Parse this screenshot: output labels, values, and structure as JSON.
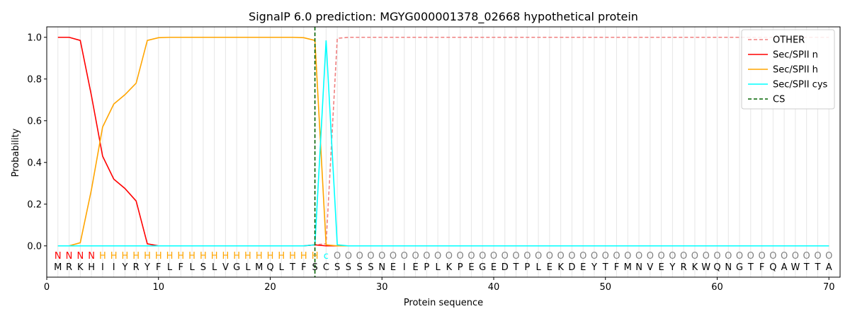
{
  "chart_data": {
    "type": "line",
    "title": "SignalP 6.0 prediction: MGYG000001378_02668 hypothetical protein",
    "xlabel": "Protein sequence",
    "ylabel": "Probability",
    "xlim": [
      0,
      71
    ],
    "ylim": [
      -0.15,
      1.05
    ],
    "xticks": [
      0,
      10,
      20,
      30,
      40,
      50,
      60,
      70
    ],
    "yticks": [
      0.0,
      0.2,
      0.4,
      0.6,
      0.8,
      1.0
    ],
    "xtick_labels": [
      "0",
      "10",
      "20",
      "30",
      "40",
      "50",
      "60",
      "70"
    ],
    "ytick_labels": [
      "0.0",
      "0.2",
      "0.4",
      "0.6",
      "0.8",
      "1.0"
    ],
    "grid": "vertical lines at each residue",
    "legend_position": "top-right",
    "sequence": [
      "M",
      "R",
      "K",
      "H",
      "I",
      "I",
      "Y",
      "R",
      "Y",
      "F",
      "L",
      "F",
      "L",
      "S",
      "L",
      "V",
      "G",
      "L",
      "M",
      "Q",
      "L",
      "T",
      "F",
      "S",
      "C",
      "S",
      "S",
      "S",
      "S",
      "N",
      "E",
      "I",
      "E",
      "P",
      "L",
      "K",
      "P",
      "E",
      "G",
      "E",
      "D",
      "T",
      "P",
      "L",
      "E",
      "K",
      "D",
      "E",
      "Y",
      "T",
      "F",
      "M",
      "N",
      "V",
      "E",
      "Y",
      "R",
      "K",
      "W",
      "Q",
      "N",
      "G",
      "T",
      "F",
      "Q",
      "A",
      "W",
      "T",
      "T",
      "A"
    ],
    "region_labels": [
      "N",
      "N",
      "N",
      "N",
      "H",
      "H",
      "H",
      "H",
      "H",
      "H",
      "H",
      "H",
      "H",
      "H",
      "H",
      "H",
      "H",
      "H",
      "H",
      "H",
      "H",
      "H",
      "H",
      "H",
      "c",
      "O",
      "O",
      "O",
      "O",
      "O",
      "O",
      "O",
      "O",
      "O",
      "O",
      "O",
      "O",
      "O",
      "O",
      "O",
      "O",
      "O",
      "O",
      "O",
      "O",
      "O",
      "O",
      "O",
      "O",
      "O",
      "O",
      "O",
      "O",
      "O",
      "O",
      "O",
      "O",
      "O",
      "O",
      "O",
      "O",
      "O",
      "O",
      "O",
      "O",
      "O",
      "O",
      "O",
      "O",
      "O"
    ],
    "region_colors": {
      "N": "#ff0000",
      "H": "#ffa500",
      "c": "#00ffff",
      "O": "#808080"
    },
    "series": [
      {
        "name": "OTHER",
        "color": "#f08080",
        "dashed": true,
        "values": [
          0.0,
          0.0,
          0.0,
          0.0,
          0.0,
          0.0,
          0.0,
          0.0,
          0.0,
          0.0,
          0.0,
          0.0,
          0.0,
          0.0,
          0.0,
          0.0,
          0.0,
          0.0,
          0.0,
          0.0,
          0.0,
          0.0,
          0.0,
          0.005,
          0.01,
          0.995,
          1.0,
          1.0,
          1.0,
          1.0,
          1.0,
          1.0,
          1.0,
          1.0,
          1.0,
          1.0,
          1.0,
          1.0,
          1.0,
          1.0,
          1.0,
          1.0,
          1.0,
          1.0,
          1.0,
          1.0,
          1.0,
          1.0,
          1.0,
          1.0,
          1.0,
          1.0,
          1.0,
          1.0,
          1.0,
          1.0,
          1.0,
          1.0,
          1.0,
          1.0,
          1.0,
          1.0,
          1.0,
          1.0,
          1.0,
          1.0,
          1.0,
          1.0,
          1.0,
          1.0
        ]
      },
      {
        "name": "Sec/SPII n",
        "color": "#ff0000",
        "dashed": false,
        "values": [
          1.0,
          1.0,
          0.985,
          0.72,
          0.43,
          0.32,
          0.275,
          0.215,
          0.01,
          0.0,
          0.0,
          0.0,
          0.0,
          0.0,
          0.0,
          0.0,
          0.0,
          0.0,
          0.0,
          0.0,
          0.0,
          0.0,
          0.0,
          0.005,
          0.0,
          0.0,
          0.0,
          0.0,
          0.0,
          0.0,
          0.0,
          0.0,
          0.0,
          0.0,
          0.0,
          0.0,
          0.0,
          0.0,
          0.0,
          0.0,
          0.0,
          0.0,
          0.0,
          0.0,
          0.0,
          0.0,
          0.0,
          0.0,
          0.0,
          0.0,
          0.0,
          0.0,
          0.0,
          0.0,
          0.0,
          0.0,
          0.0,
          0.0,
          0.0,
          0.0,
          0.0,
          0.0,
          0.0,
          0.0,
          0.0,
          0.0,
          0.0,
          0.0,
          0.0,
          0.0
        ]
      },
      {
        "name": "Sec/SPII h",
        "color": "#ffa500",
        "dashed": false,
        "values": [
          0.0,
          0.0,
          0.015,
          0.27,
          0.57,
          0.68,
          0.725,
          0.78,
          0.985,
          0.998,
          1.0,
          1.0,
          1.0,
          1.0,
          1.0,
          1.0,
          1.0,
          1.0,
          1.0,
          1.0,
          1.0,
          1.0,
          0.998,
          0.985,
          0.005,
          0.0,
          0.0,
          0.0,
          0.0,
          0.0,
          0.0,
          0.0,
          0.0,
          0.0,
          0.0,
          0.0,
          0.0,
          0.0,
          0.0,
          0.0,
          0.0,
          0.0,
          0.0,
          0.0,
          0.0,
          0.0,
          0.0,
          0.0,
          0.0,
          0.0,
          0.0,
          0.0,
          0.0,
          0.0,
          0.0,
          0.0,
          0.0,
          0.0,
          0.0,
          0.0,
          0.0,
          0.0,
          0.0,
          0.0,
          0.0,
          0.0,
          0.0,
          0.0,
          0.0,
          0.0
        ]
      },
      {
        "name": "Sec/SPII cys",
        "color": "#00ffff",
        "dashed": false,
        "values": [
          0.0,
          0.0,
          0.0,
          0.0,
          0.0,
          0.0,
          0.0,
          0.0,
          0.0,
          0.0,
          0.0,
          0.0,
          0.0,
          0.0,
          0.0,
          0.0,
          0.0,
          0.0,
          0.0,
          0.0,
          0.0,
          0.0,
          0.0,
          0.005,
          0.985,
          0.005,
          0.0,
          0.0,
          0.0,
          0.0,
          0.0,
          0.0,
          0.0,
          0.0,
          0.0,
          0.0,
          0.0,
          0.0,
          0.0,
          0.0,
          0.0,
          0.0,
          0.0,
          0.0,
          0.0,
          0.0,
          0.0,
          0.0,
          0.0,
          0.0,
          0.0,
          0.0,
          0.0,
          0.0,
          0.0,
          0.0,
          0.0,
          0.0,
          0.0,
          0.0,
          0.0,
          0.0,
          0.0,
          0.0,
          0.0,
          0.0,
          0.0,
          0.0,
          0.0,
          0.0
        ]
      }
    ],
    "cs": {
      "name": "CS",
      "x": 24,
      "color": "#006400"
    },
    "legend_order": [
      "OTHER",
      "Sec/SPII n",
      "Sec/SPII h",
      "Sec/SPII cys",
      "CS"
    ]
  }
}
